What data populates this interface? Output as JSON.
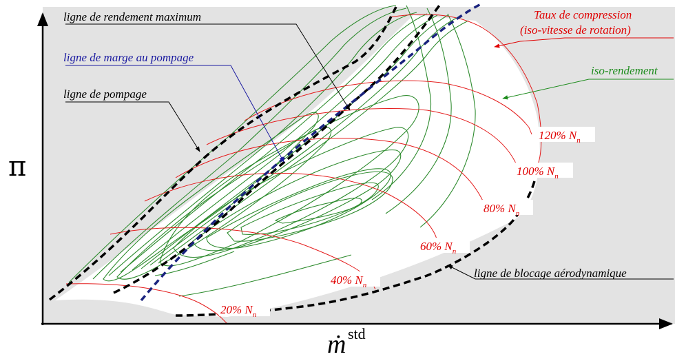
{
  "axes": {
    "y_symbol": "π",
    "x_symbol": "ṁ",
    "x_superscript": "std"
  },
  "annotations": {
    "max_efficiency_line": "ligne de rendement maximum",
    "surge_margin_line": "ligne de marge au pompage",
    "surge_line": "ligne de pompage",
    "pressure_ratio_line1": "Taux de compression",
    "pressure_ratio_line2": "(iso-vitesse de rotation)",
    "iso_efficiency": "iso-rendement",
    "choke_line": "ligne de blocage aérodynamique"
  },
  "speed_labels": [
    {
      "pct": "20%",
      "sym": "N",
      "sub": "n"
    },
    {
      "pct": "40%",
      "sym": "N",
      "sub": "n"
    },
    {
      "pct": "60%",
      "sym": "N",
      "sub": "n"
    },
    {
      "pct": "80%",
      "sym": "N",
      "sub": "n"
    },
    {
      "pct": "100%",
      "sym": "N",
      "sub": "n"
    },
    {
      "pct": "120%",
      "sym": "N",
      "sub": "n"
    }
  ],
  "colors": {
    "background_gray": "#e3e3e3",
    "speed_lines": "#e41c1c",
    "iso_efficiency": "#2e8b2e",
    "surge_margin": "#1a237e",
    "dashed_black": "#000000",
    "annotation_blue": "#1a1aa0",
    "annotation_red": "#e00000",
    "annotation_green": "#1e8c1e"
  }
}
